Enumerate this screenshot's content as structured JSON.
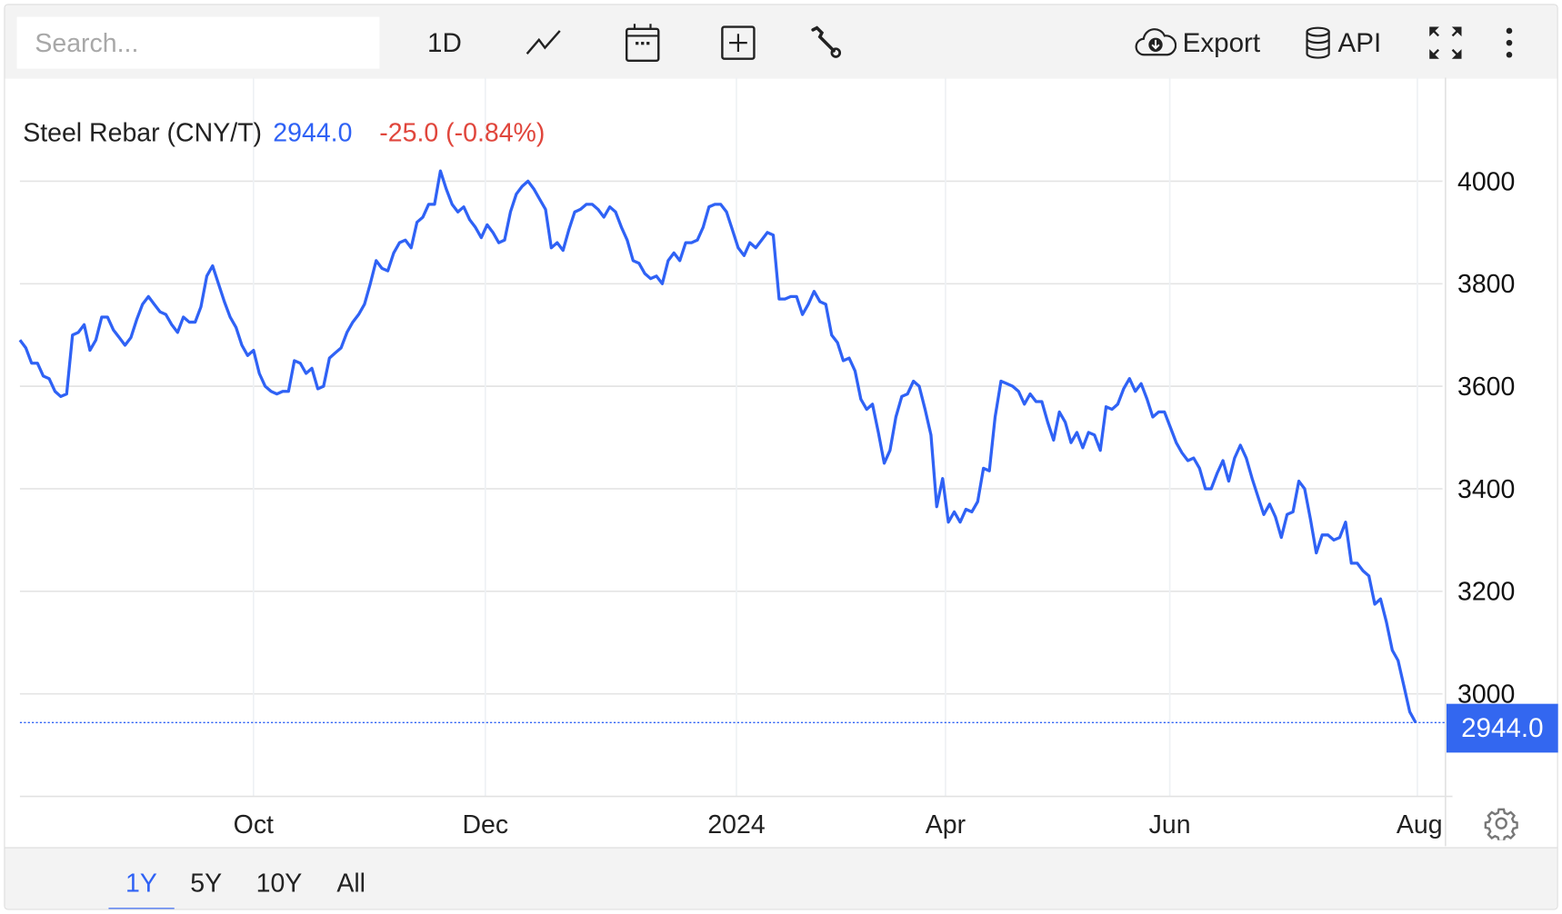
{
  "toolbar": {
    "search_placeholder": "Search...",
    "interval_label": "1D",
    "export_label": "Export",
    "api_label": "API",
    "icons": [
      "line-chart-icon",
      "calendar-icon",
      "add-box-icon",
      "wrench-icon",
      "cloud-download-icon",
      "database-icon",
      "fullscreen-icon",
      "more-vertical-icon"
    ]
  },
  "legend": {
    "name": "Steel Rebar (CNY/T)",
    "price": "2944.0",
    "change": "-25.0 (-0.84%)"
  },
  "colors": {
    "line": "#2f62f5",
    "change_negative": "#e0463c",
    "price_tag": "#3367f0"
  },
  "last_price_tag": "2944.0",
  "range_tabs": [
    {
      "label": "1Y",
      "active": true
    },
    {
      "label": "5Y",
      "active": false
    },
    {
      "label": "10Y",
      "active": false
    },
    {
      "label": "All",
      "active": false
    }
  ],
  "chart_data": {
    "type": "line",
    "title": "",
    "xlabel": "",
    "ylabel": "",
    "ylim": [
      2880,
      4060
    ],
    "grid": true,
    "y_axis_side": "right",
    "yticks": [
      4000,
      3800,
      3600,
      3400,
      3200,
      3000
    ],
    "yticklabels": [
      "4000",
      "3800",
      "3600",
      "3400",
      "3200",
      "3000"
    ],
    "xticks": [
      {
        "label": "Oct",
        "index": 40
      },
      {
        "label": "Dec",
        "index": 79.7
      },
      {
        "label": "2024",
        "index": 122.7
      },
      {
        "label": "Apr",
        "index": 158.5
      },
      {
        "label": "Jun",
        "index": 196.9
      },
      {
        "label": "Aug",
        "index": 239.3
      }
    ],
    "last_value": 2944.0,
    "series": [
      {
        "name": "Steel Rebar (CNY/T)",
        "values": [
          3690,
          3675,
          3645,
          3645,
          3620,
          3615,
          3590,
          3580,
          3585,
          3700,
          3705,
          3720,
          3670,
          3690,
          3735,
          3735,
          3710,
          3695,
          3680,
          3695,
          3730,
          3760,
          3775,
          3760,
          3745,
          3740,
          3720,
          3705,
          3735,
          3725,
          3725,
          3755,
          3815,
          3835,
          3800,
          3765,
          3735,
          3715,
          3680,
          3660,
          3670,
          3625,
          3600,
          3590,
          3585,
          3590,
          3590,
          3650,
          3645,
          3625,
          3635,
          3595,
          3600,
          3655,
          3665,
          3675,
          3705,
          3725,
          3740,
          3760,
          3800,
          3845,
          3830,
          3825,
          3860,
          3880,
          3885,
          3870,
          3920,
          3930,
          3955,
          3955,
          4020,
          3985,
          3955,
          3940,
          3950,
          3925,
          3910,
          3890,
          3915,
          3900,
          3880,
          3885,
          3940,
          3975,
          3990,
          4000,
          3985,
          3965,
          3945,
          3870,
          3880,
          3865,
          3905,
          3940,
          3945,
          3955,
          3955,
          3945,
          3930,
          3950,
          3940,
          3910,
          3885,
          3845,
          3840,
          3820,
          3810,
          3815,
          3800,
          3845,
          3860,
          3845,
          3880,
          3880,
          3885,
          3910,
          3950,
          3955,
          3955,
          3940,
          3905,
          3870,
          3855,
          3880,
          3870,
          3885,
          3900,
          3895,
          3770,
          3770,
          3775,
          3775,
          3740,
          3760,
          3785,
          3765,
          3760,
          3700,
          3685,
          3650,
          3655,
          3630,
          3575,
          3555,
          3565,
          3510,
          3450,
          3475,
          3540,
          3580,
          3585,
          3610,
          3600,
          3555,
          3505,
          3365,
          3420,
          3335,
          3355,
          3335,
          3360,
          3355,
          3375,
          3440,
          3435,
          3540,
          3610,
          3605,
          3600,
          3590,
          3565,
          3585,
          3570,
          3570,
          3530,
          3495,
          3550,
          3530,
          3490,
          3510,
          3480,
          3510,
          3505,
          3475,
          3560,
          3555,
          3565,
          3595,
          3615,
          3590,
          3605,
          3575,
          3540,
          3550,
          3550,
          3520,
          3490,
          3470,
          3455,
          3460,
          3440,
          3400,
          3400,
          3430,
          3455,
          3415,
          3460,
          3485,
          3460,
          3420,
          3385,
          3350,
          3370,
          3345,
          3305,
          3350,
          3355,
          3415,
          3400,
          3340,
          3275,
          3310,
          3310,
          3300,
          3305,
          3335,
          3255,
          3255,
          3240,
          3230,
          3175,
          3185,
          3140,
          3085,
          3065,
          3015,
          2965,
          2944
        ]
      }
    ]
  }
}
